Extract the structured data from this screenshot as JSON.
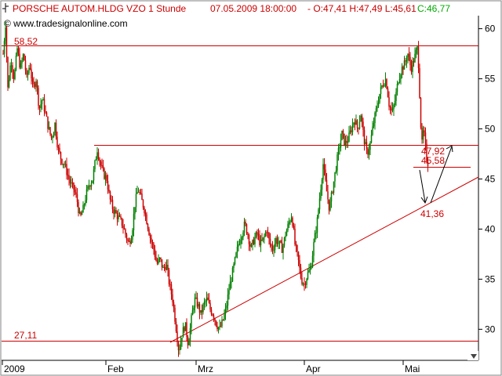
{
  "header": {
    "symbol_icon": "candlestick-icon",
    "title": "PORSCHE AUTOM.HLDG VZO 1 Stunde",
    "datetime": "07.05.2009 18:00:00",
    "ohlc": "- O:47,41 H:47,49 L:45,61",
    "close": "C:46,77",
    "close_color": "#00aa00",
    "watermark": "© www.tradesignalonline.com"
  },
  "scroll": {
    "arrow_icon": "scroll-right-arrow-icon"
  },
  "chart_data": {
    "type": "candlestick",
    "title": "PORSCHE AUTOM.HLDG VZO 1 Stunde",
    "xlabel": "",
    "ylabel": "",
    "ylim": [
      26.9,
      61.3
    ],
    "y_ticks": [
      30,
      35,
      40,
      45,
      50,
      55,
      60
    ],
    "x_tick_labels": [
      "2009",
      "Feb",
      "Mrz",
      "Apr",
      "Mai"
    ],
    "grid": false,
    "up_color": "#008000",
    "down_color": "#cc0000",
    "series": [
      {
        "values": [
          [
            0,
            57.5
          ],
          [
            3,
            60.5
          ],
          [
            6,
            54.0
          ],
          [
            10,
            57.0
          ],
          [
            14,
            55.0
          ],
          [
            18,
            58.0
          ],
          [
            22,
            56.0
          ],
          [
            26,
            57.5
          ],
          [
            30,
            55.0
          ],
          [
            34,
            56.5
          ],
          [
            38,
            54.0
          ],
          [
            42,
            55.0
          ],
          [
            46,
            52.0
          ],
          [
            50,
            53.0
          ],
          [
            54,
            51.5
          ],
          [
            58,
            50.0
          ],
          [
            62,
            49.0
          ],
          [
            66,
            50.5
          ],
          [
            70,
            48.0
          ],
          [
            74,
            47.0
          ],
          [
            78,
            46.5
          ],
          [
            82,
            45.5
          ],
          [
            86,
            44.5
          ],
          [
            90,
            44.0
          ],
          [
            94,
            43.0
          ],
          [
            98,
            41.0
          ],
          [
            102,
            42.0
          ],
          [
            106,
            43.5
          ],
          [
            110,
            44.5
          ],
          [
            114,
            45.0
          ],
          [
            117,
            46.5
          ],
          [
            120,
            48.0
          ],
          [
            124,
            46.5
          ],
          [
            128,
            45.5
          ],
          [
            132,
            45.0
          ],
          [
            136,
            43.0
          ],
          [
            140,
            42.0
          ],
          [
            144,
            41.5
          ],
          [
            148,
            41.0
          ],
          [
            152,
            40.5
          ],
          [
            156,
            39.5
          ],
          [
            160,
            38.5
          ],
          [
            164,
            39.5
          ],
          [
            168,
            42.5
          ],
          [
            172,
            44.0
          ],
          [
            176,
            43.0
          ],
          [
            180,
            42.0
          ],
          [
            184,
            40.5
          ],
          [
            188,
            39.0
          ],
          [
            192,
            38.0
          ],
          [
            196,
            36.5
          ],
          [
            200,
            37.0
          ],
          [
            204,
            36.0
          ],
          [
            208,
            36.5
          ],
          [
            212,
            34.5
          ],
          [
            216,
            33.0
          ],
          [
            220,
            30.5
          ],
          [
            224,
            27.8
          ],
          [
            228,
            29.5
          ],
          [
            232,
            30.5
          ],
          [
            236,
            28.5
          ],
          [
            240,
            31.0
          ],
          [
            244,
            33.0
          ],
          [
            248,
            32.5
          ],
          [
            252,
            31.5
          ],
          [
            256,
            32.5
          ],
          [
            260,
            33.0
          ],
          [
            264,
            32.0
          ],
          [
            268,
            31.5
          ],
          [
            272,
            30.5
          ],
          [
            276,
            30.0
          ],
          [
            280,
            30.8
          ],
          [
            284,
            32.0
          ],
          [
            288,
            34.0
          ],
          [
            292,
            35.5
          ],
          [
            296,
            37.0
          ],
          [
            300,
            38.5
          ],
          [
            304,
            39.5
          ],
          [
            308,
            40.5
          ],
          [
            312,
            39.5
          ],
          [
            316,
            38.0
          ],
          [
            320,
            39.0
          ],
          [
            324,
            39.5
          ],
          [
            328,
            38.5
          ],
          [
            332,
            39.0
          ],
          [
            336,
            40.0
          ],
          [
            340,
            38.5
          ],
          [
            344,
            38.0
          ],
          [
            348,
            39.0
          ],
          [
            352,
            38.5
          ],
          [
            356,
            38.0
          ],
          [
            360,
            39.5
          ],
          [
            364,
            40.5
          ],
          [
            368,
            41.5
          ],
          [
            372,
            38.5
          ],
          [
            376,
            37.0
          ],
          [
            380,
            35.0
          ],
          [
            384,
            34.5
          ],
          [
            388,
            35.5
          ],
          [
            392,
            36.0
          ],
          [
            396,
            38.5
          ],
          [
            400,
            40.5
          ],
          [
            404,
            43.5
          ],
          [
            408,
            46.5
          ],
          [
            412,
            44.0
          ],
          [
            416,
            42.0
          ],
          [
            420,
            44.0
          ],
          [
            424,
            46.0
          ],
          [
            428,
            48.0
          ],
          [
            432,
            49.5
          ],
          [
            436,
            48.5
          ],
          [
            440,
            49.0
          ],
          [
            444,
            50.0
          ],
          [
            448,
            51.0
          ],
          [
            452,
            50.0
          ],
          [
            456,
            51.5
          ],
          [
            460,
            49.0
          ],
          [
            464,
            47.5
          ],
          [
            468,
            48.5
          ],
          [
            472,
            50.5
          ],
          [
            476,
            52.0
          ],
          [
            480,
            53.5
          ],
          [
            484,
            54.5
          ],
          [
            488,
            55.0
          ],
          [
            492,
            52.5
          ],
          [
            496,
            51.5
          ],
          [
            500,
            53.0
          ],
          [
            504,
            55.0
          ],
          [
            508,
            56.0
          ],
          [
            512,
            56.5
          ],
          [
            516,
            57.5
          ],
          [
            520,
            56.0
          ],
          [
            524,
            57.0
          ],
          [
            528,
            58.0
          ],
          [
            530,
            56.0
          ],
          [
            532,
            51.0
          ],
          [
            534,
            48.5
          ],
          [
            536,
            50.0
          ],
          [
            538,
            48.5
          ],
          [
            540,
            47.0
          ],
          [
            542,
            46.5
          ]
        ]
      }
    ],
    "horizontal_lines": [
      {
        "y": 58.52,
        "label": "58,52"
      },
      {
        "y": 47.92,
        "label": "47,92"
      },
      {
        "y": 45.58,
        "label": "45,58"
      },
      {
        "y": 27.11,
        "label": "27,11"
      }
    ],
    "trendline_label": "41,36"
  }
}
